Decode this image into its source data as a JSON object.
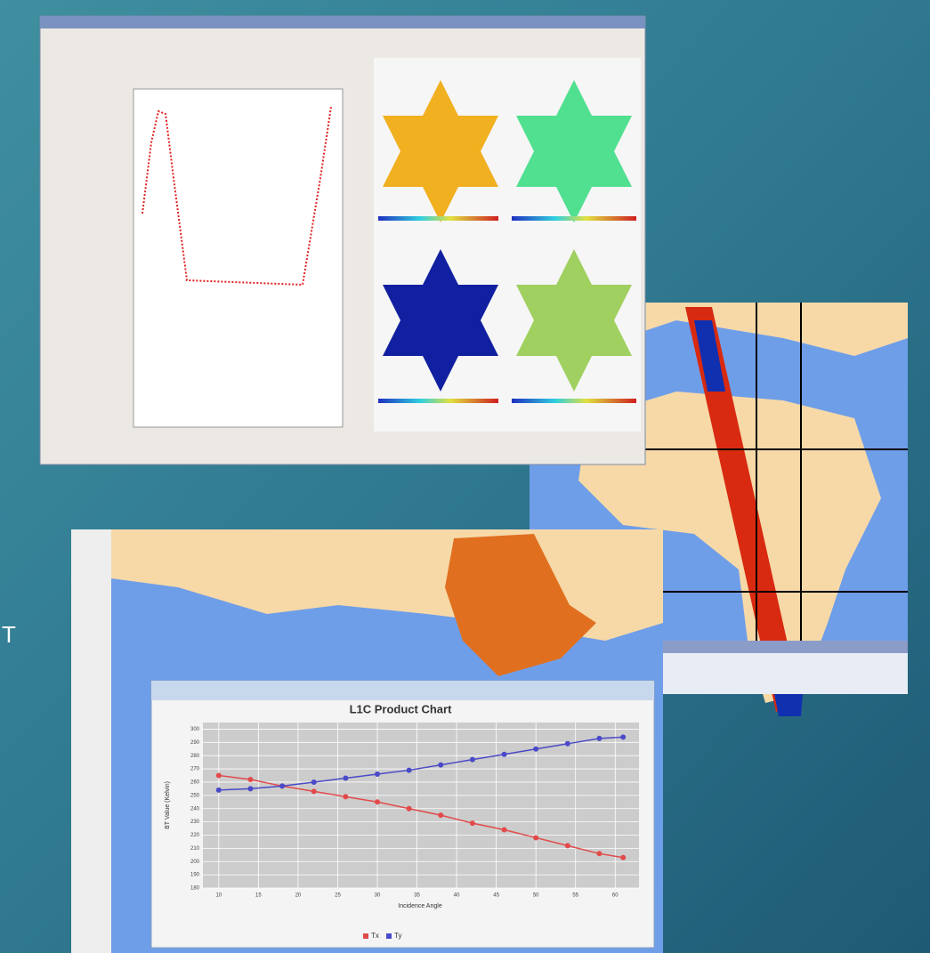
{
  "slide": {
    "side_text": "T"
  },
  "chart_data": {
    "type": "line",
    "title": "L1C Product Chart",
    "x_label": "Incidence Angle",
    "y_label": "BT Value (Kelvin)",
    "x": [
      10,
      14,
      18,
      22,
      26,
      30,
      34,
      38,
      42,
      46,
      50,
      54,
      58,
      61
    ],
    "series": [
      {
        "name": "Tx",
        "color": "#e24a4a",
        "values": [
          265,
          262,
          257,
          253,
          249,
          245,
          240,
          235,
          229,
          224,
          218,
          212,
          206,
          203
        ]
      },
      {
        "name": "Ty",
        "color": "#4a4ac8",
        "values": [
          254,
          255,
          257,
          260,
          263,
          266,
          269,
          273,
          277,
          281,
          285,
          289,
          293,
          294
        ]
      }
    ],
    "xlim": [
      8,
      63
    ],
    "xticks": [
      10,
      15,
      20,
      25,
      30,
      35,
      40,
      45,
      50,
      55,
      60
    ],
    "ylim": [
      180,
      305
    ],
    "yticks": [
      180,
      190,
      200,
      210,
      220,
      230,
      240,
      250,
      260,
      270,
      280,
      290,
      300
    ],
    "grid": true,
    "legend": "bottom"
  }
}
